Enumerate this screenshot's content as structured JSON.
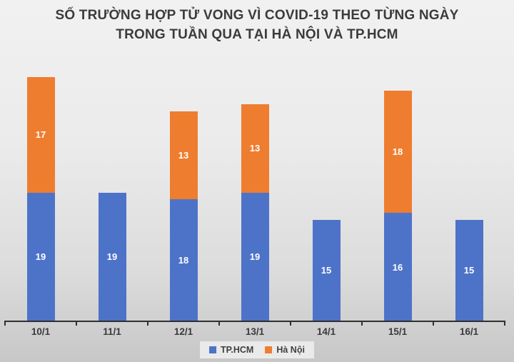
{
  "title": {
    "line1": "SỐ TRƯỜNG HỢP TỬ VONG VÌ COVID-19 THEO TỪNG NGÀY",
    "line2": "TRONG TUẦN QUA TẠI HÀ NỘI VÀ TP.HCM"
  },
  "legend": {
    "items": [
      {
        "label": "TP.HCM",
        "color": "#4d73c9"
      },
      {
        "label": "Hà Nội",
        "color": "#ee7d2f"
      }
    ]
  },
  "colors": {
    "tphcm_blue": "#4d73c9",
    "hanoi_orange": "#ee7d2f",
    "axis": "#2f2f2f",
    "title_text": "#3b3b3b",
    "bar_label_text": "#ffffff",
    "legend_bg": "#eaeaea"
  },
  "chart_data": {
    "type": "bar",
    "stacked": true,
    "title": "SỐ TRƯỜNG HỢP TỬ VONG VÌ COVID-19 THEO TỪNG NGÀY TRONG TUẦN QUA TẠI HÀ NỘI VÀ TP.HCM",
    "categories": [
      "10/1",
      "11/1",
      "12/1",
      "13/1",
      "14/1",
      "15/1",
      "16/1"
    ],
    "series": [
      {
        "name": "TP.HCM",
        "color": "#4d73c9",
        "values": [
          19,
          19,
          18,
          19,
          15,
          16,
          15
        ]
      },
      {
        "name": "Hà Nội",
        "color": "#ee7d2f",
        "values": [
          17,
          null,
          13,
          13,
          null,
          18,
          null
        ]
      }
    ],
    "xlabel": "",
    "ylabel": "",
    "ylim": [
      0,
      36
    ],
    "grid": false,
    "y_axis_visible": false,
    "data_labels": "inside-center",
    "legend_position": "bottom"
  }
}
